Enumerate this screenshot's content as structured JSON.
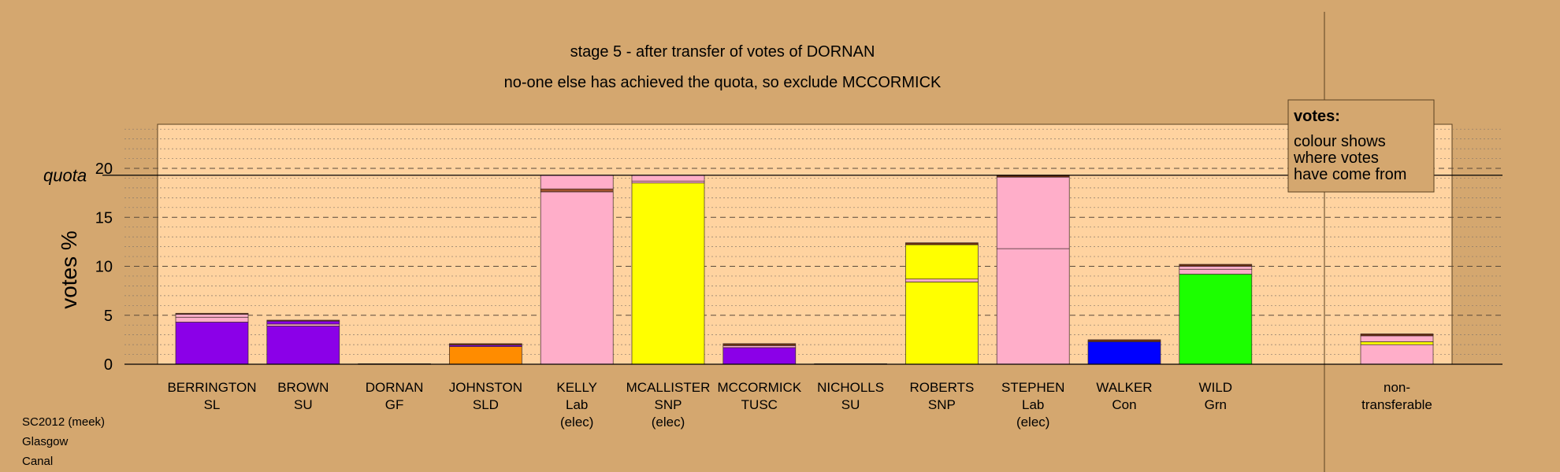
{
  "chart_data": {
    "type": "bar",
    "title": "stage 5 - after transfer of votes of DORNAN",
    "subtitle": "no-one else has achieved the quota, so exclude MCCORMICK",
    "ylabel": "votes %",
    "ylim": [
      0,
      24
    ],
    "yticks": [
      "0",
      "5",
      "10",
      "15",
      "20"
    ],
    "quota_label": "quota",
    "quota": 19.3,
    "grid": true,
    "legend_position": "top-right",
    "legend": {
      "title": "votes:",
      "lines": [
        "colour shows",
        "where votes",
        "have come from"
      ]
    },
    "colors": {
      "background": "#d4a76f",
      "plot_area": "#ffd3a0",
      "SL": "#8b00e8",
      "SU": "#8b00e8",
      "TUSC": "#8b00e8",
      "GF": "#a0522d",
      "SLD": "#ff8c00",
      "Lab": "#ffaec9",
      "SNP": "#ffff00",
      "Con": "#0000ff",
      "Grn": "#1cff00",
      "transfer_SL": "#ffaec9",
      "transfer_SU": "#8b00e8",
      "transfer_GF": "#6b2f0e",
      "transfer_Lab": "#ffaec9",
      "transfer_SNP": "#ffff00"
    },
    "candidates": [
      {
        "name": "BERRINGTON",
        "party": "SL",
        "note": "",
        "segments": [
          {
            "value": 4.3,
            "color": "#8b00e8"
          },
          {
            "value": 0.5,
            "color": "#ffaec9"
          },
          {
            "value": 0.3,
            "color": "#ffaec9"
          },
          {
            "value": 0.1,
            "color": "#6b2f0e"
          }
        ]
      },
      {
        "name": "BROWN",
        "party": "SU",
        "note": "",
        "segments": [
          {
            "value": 3.9,
            "color": "#8b00e8"
          },
          {
            "value": 0.2,
            "color": "#ffaec9"
          },
          {
            "value": 0.3,
            "color": "#8b00e8"
          },
          {
            "value": 0.1,
            "color": "#6b2f0e"
          }
        ]
      },
      {
        "name": "DORNAN",
        "party": "GF",
        "note": "",
        "segments": [
          {
            "value": 0.05,
            "color": "#6b2f0e"
          }
        ]
      },
      {
        "name": "JOHNSTON",
        "party": "SLD",
        "note": "",
        "segments": [
          {
            "value": 1.8,
            "color": "#ff8c00"
          },
          {
            "value": 0.15,
            "color": "#8b00e8"
          },
          {
            "value": 0.15,
            "color": "#6b2f0e"
          }
        ]
      },
      {
        "name": "KELLY",
        "party": "Lab",
        "note": "(elec)",
        "segments": [
          {
            "value": 17.6,
            "color": "#ffaec9"
          },
          {
            "value": 0.3,
            "color": "#a0522d"
          },
          {
            "value": 1.4,
            "color": "#ffaec9"
          }
        ]
      },
      {
        "name": "MCALLISTER",
        "party": "SNP",
        "note": "(elec)",
        "segments": [
          {
            "value": 18.5,
            "color": "#ffff00"
          },
          {
            "value": 0.2,
            "color": "#ffaec9"
          },
          {
            "value": 0.6,
            "color": "#ffaec9"
          }
        ]
      },
      {
        "name": "MCCORMICK",
        "party": "TUSC",
        "note": "",
        "segments": [
          {
            "value": 1.7,
            "color": "#8b00e8"
          },
          {
            "value": 0.2,
            "color": "#ffaec9"
          },
          {
            "value": 0.2,
            "color": "#6b2f0e"
          }
        ]
      },
      {
        "name": "NICHOLLS",
        "party": "SU",
        "note": "",
        "segments": [
          {
            "value": 0.05,
            "color": "#8b00e8"
          }
        ]
      },
      {
        "name": "ROBERTS",
        "party": "SNP",
        "note": "",
        "segments": [
          {
            "value": 8.4,
            "color": "#ffff00"
          },
          {
            "value": 0.3,
            "color": "#ffaec9"
          },
          {
            "value": 3.5,
            "color": "#ffff00"
          },
          {
            "value": 0.2,
            "color": "#6b2f0e"
          }
        ]
      },
      {
        "name": "STEPHEN",
        "party": "Lab",
        "note": "(elec)",
        "segments": [
          {
            "value": 11.8,
            "color": "#ffaec9"
          },
          {
            "value": 7.3,
            "color": "#ffaec9"
          },
          {
            "value": 0.2,
            "color": "#6b2f0e"
          }
        ]
      },
      {
        "name": "WALKER",
        "party": "Con",
        "note": "",
        "segments": [
          {
            "value": 2.3,
            "color": "#0000ff"
          },
          {
            "value": 0.2,
            "color": "#6b2f0e"
          }
        ]
      },
      {
        "name": "WILD",
        "party": "Grn",
        "note": "",
        "segments": [
          {
            "value": 9.2,
            "color": "#1cff00"
          },
          {
            "value": 0.5,
            "color": "#ffaec9"
          },
          {
            "value": 0.3,
            "color": "#ffaec9"
          },
          {
            "value": 0.2,
            "color": "#6b2f0e"
          }
        ]
      }
    ],
    "nontransferable": {
      "label_lines": [
        "non-",
        "transferable"
      ],
      "segments": [
        {
          "value": 2.0,
          "color": "#ffaec9"
        },
        {
          "value": 0.3,
          "color": "#ffff00"
        },
        {
          "value": 0.6,
          "color": "#ffaec9"
        },
        {
          "value": 0.2,
          "color": "#6b2f0e"
        }
      ]
    }
  },
  "credit": {
    "line1": "SC2012 (meek)",
    "line2": "Glasgow",
    "line3": "Canal"
  }
}
